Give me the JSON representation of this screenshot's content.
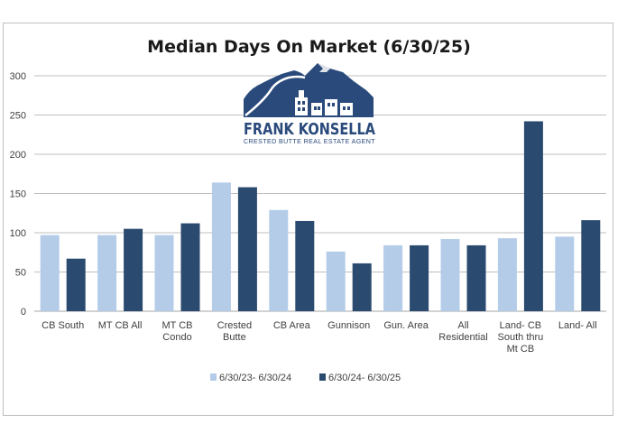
{
  "chart_data": {
    "type": "bar",
    "title": "Median Days On Market (6/30/25)",
    "categories": [
      [
        "CB South"
      ],
      [
        "MT CB All"
      ],
      [
        "MT CB",
        "Condo"
      ],
      [
        "Crested",
        "Butte"
      ],
      [
        "CB Area"
      ],
      [
        "Gunnison"
      ],
      [
        "Gun. Area"
      ],
      [
        "All",
        "Residential"
      ],
      [
        "Land- CB",
        "South thru",
        "Mt CB"
      ],
      [
        "Land- All"
      ]
    ],
    "series": [
      {
        "name": "6/30/23- 6/30/24",
        "color": "#b4cce8",
        "values": [
          97,
          97,
          97,
          164,
          129,
          76,
          84,
          92,
          93,
          95
        ]
      },
      {
        "name": "6/30/24- 6/30/25",
        "color": "#2a4a6f",
        "values": [
          67,
          105,
          112,
          158,
          115,
          61,
          84,
          84,
          242,
          116
        ]
      }
    ],
    "ylim": [
      0,
      300
    ],
    "yticks": [
      0,
      50,
      100,
      150,
      200,
      250,
      300
    ],
    "grid": true,
    "legend": "bottom"
  },
  "logo": {
    "name": "FRANK KONSELLA",
    "tagline": "CRESTED BUTTE REAL ESTATE AGENT"
  }
}
